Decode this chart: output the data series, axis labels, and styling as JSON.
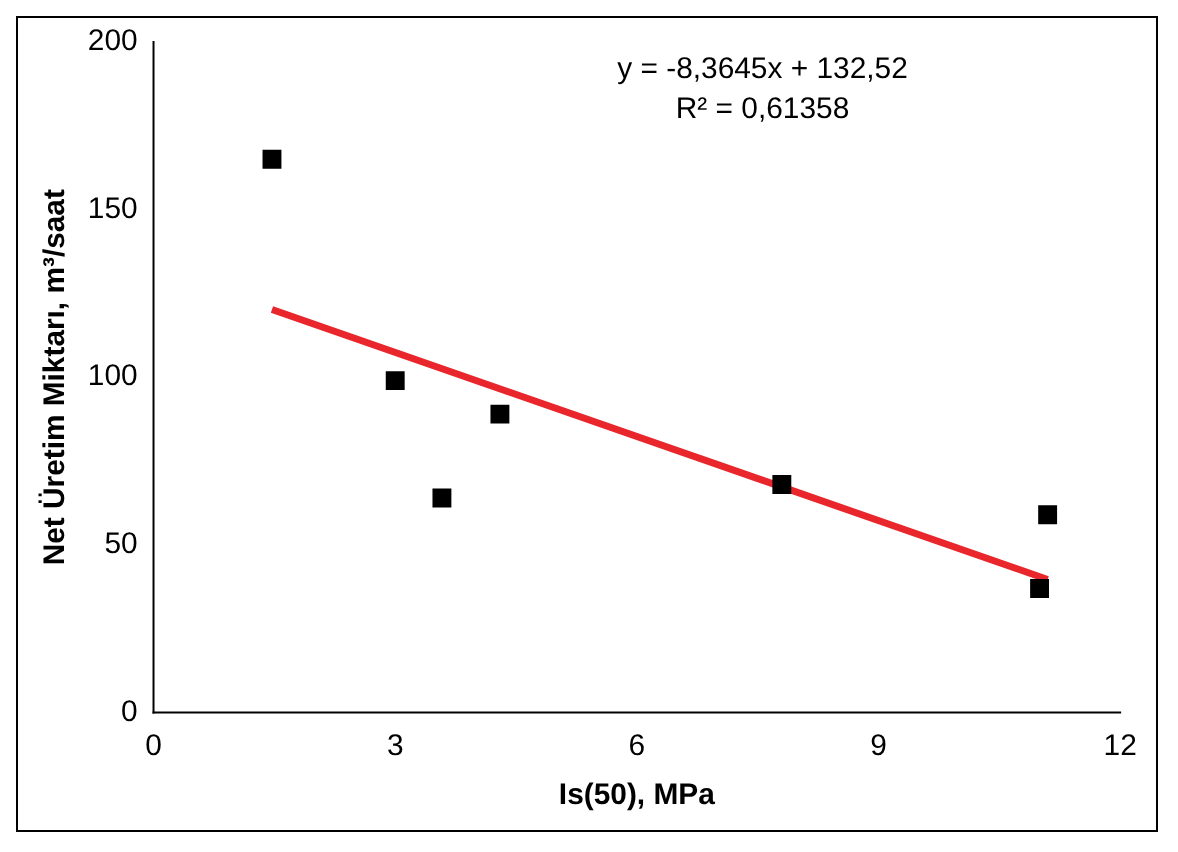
{
  "chart_data": {
    "type": "scatter",
    "xlabel": "Is(50), MPa",
    "ylabel": "Net Üretim Miktarı, m³/saat",
    "annotations": [
      "y = -8,3645x + 132,52",
      "R² = 0,61358"
    ],
    "xlim": [
      0,
      12
    ],
    "xticks": [
      0,
      3,
      6,
      9,
      12
    ],
    "ylim": [
      0,
      200
    ],
    "yticks": [
      0,
      50,
      100,
      150,
      200
    ],
    "grid": false,
    "legend": false,
    "marker": "square",
    "series": [
      {
        "type": "scatter",
        "color": "#000000",
        "x": [
          1.47,
          3.0,
          3.58,
          4.3,
          7.8,
          11.0,
          11.1
        ],
        "values": [
          165,
          99,
          64,
          89,
          68,
          37,
          59
        ]
      },
      {
        "type": "line",
        "color": "#e8262b",
        "marker": "none",
        "line_style": "solid",
        "x": [
          1.47,
          11.1
        ],
        "values": [
          120.2,
          39.7
        ]
      }
    ]
  }
}
